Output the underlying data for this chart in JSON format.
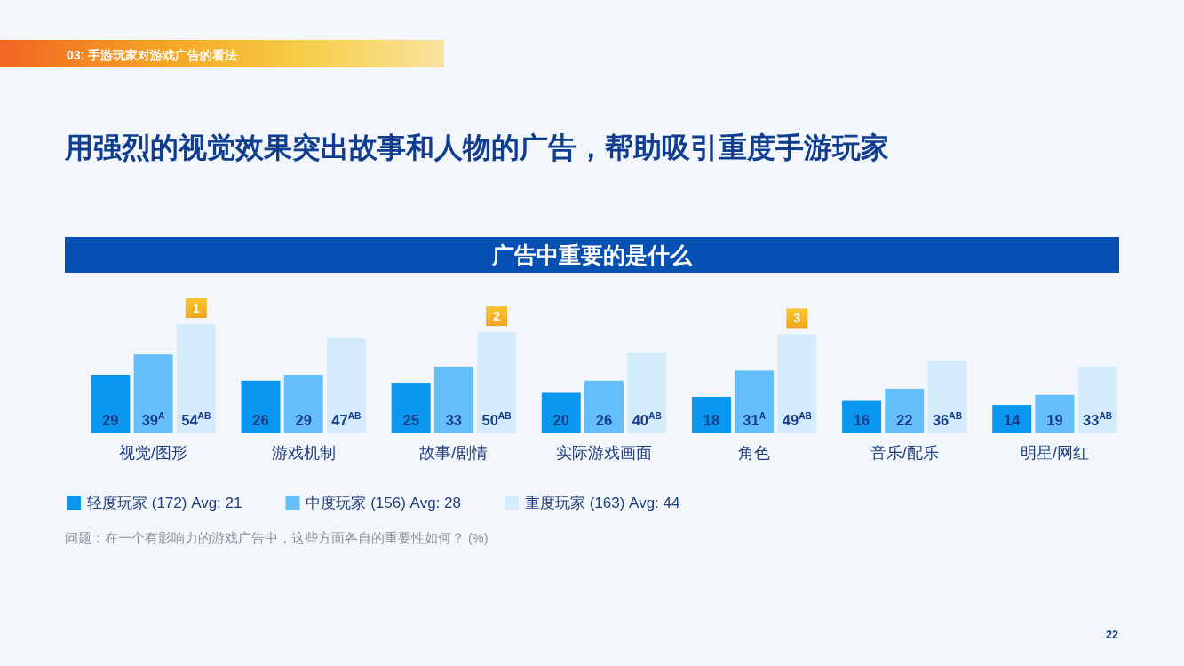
{
  "chart_data": {
    "type": "bar",
    "title": "用强烈的视觉效果突出故事和人物的广告，帮助吸引重度手游玩家",
    "subtitle": "广告中重要的是什么",
    "categories": [
      "视觉/图形",
      "游戏机制",
      "故事/剧情",
      "实际游戏画面",
      "角色",
      "音乐/配乐",
      "明星/网红"
    ],
    "series": [
      {
        "name": "轻度玩家 (172) Avg: 21",
        "color": "#0a97ef",
        "values": [
          29,
          26,
          25,
          20,
          18,
          16,
          14
        ],
        "value_labels": [
          "29",
          "26",
          "25",
          "20",
          "18",
          "16",
          "14"
        ]
      },
      {
        "name": "中度玩家 (156) Avg: 28",
        "color": "#63bef9",
        "values": [
          39,
          29,
          33,
          26,
          31,
          22,
          19
        ],
        "value_labels": [
          "39$^{A}$",
          "29",
          "33",
          "26",
          "31$^{A}$",
          "22",
          "19"
        ]
      },
      {
        "name": "重度玩家 (163) Avg: 44",
        "color": "#d4ebfc",
        "values": [
          54,
          47,
          50,
          40,
          49,
          36,
          33
        ],
        "value_labels": [
          "54$^{AB}$",
          "47$^{AB}$",
          "50$^{AB}$",
          "40$^{AB}$",
          "49$^{AB}$",
          "36$^{AB}$",
          "33$^{AB}$"
        ]
      }
    ],
    "legend": "bottom",
    "annotations": [
      "03: 手游玩家对游戏广告的看法",
      "1",
      "2",
      "3",
      "问题：在一个有影响力的游戏广告中，这些方面各自的重要性如何？ (%)",
      "22"
    ]
  }
}
